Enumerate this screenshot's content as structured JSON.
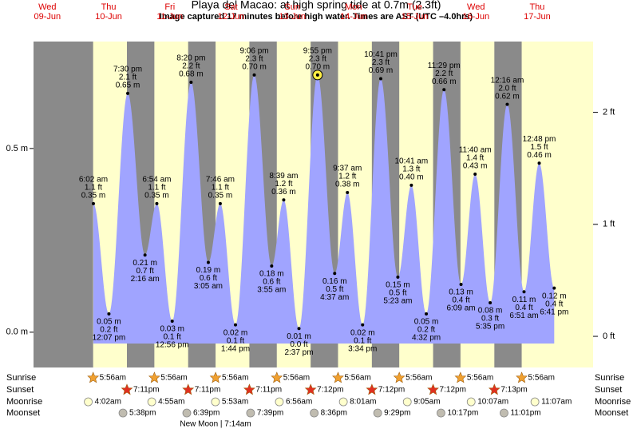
{
  "chart_data": {
    "type": "tide",
    "title": "Playa del Macao: at high  spring tide at 0.7m (2.3ft)",
    "subtitle": "Image captured 17 minutes before high water. Times are AST (UTC –4.0hrs)",
    "ylim": [
      -0.096,
      0.791
    ],
    "yticks": [
      {
        "value": 0,
        "label": "0.0 m"
      },
      {
        "value": 0.5,
        "label": "0.5 m"
      }
    ],
    "y2lim": [
      -0.278,
      2.632
    ],
    "y2ticks": [
      {
        "value": 0,
        "label": "0 ft"
      },
      {
        "value": 1,
        "label": "1 ft"
      },
      {
        "value": 2,
        "label": "2 ft"
      }
    ],
    "colors": {
      "water": "#a0a4ff",
      "day": "#ffffcc",
      "night": "#8a8a8a",
      "date": "#dd0000",
      "sunrise": "#f0a030",
      "sunset": "#e03020",
      "moonrise": "#ffffcc",
      "moonset": "#c0bcb0"
    },
    "rows": {
      "sunrise": "Sunrise",
      "sunset": "Sunset",
      "moonrise": "Moonrise",
      "moonset": "Moonset"
    },
    "moon_phase": "New Moon | 7:14am",
    "days": [
      {
        "weekday": "Wed",
        "date": "09-Jun",
        "tides": []
      },
      {
        "weekday": "Thu",
        "date": "10-Jun",
        "sunrise": "5:56am",
        "sunset": "7:11pm",
        "moonrise": "4:02am",
        "moonset": "5:38pm",
        "tides": [
          {
            "time": "6:02 am",
            "ft": "1.1 ft",
            "m": {
              "value": 0.35,
              "label": "0.35 m"
            }
          },
          {
            "time": "12:07 pm",
            "ft": "0.2 ft",
            "m": {
              "value": 0.05,
              "label": "0.05 m"
            }
          },
          {
            "time": "7:30 pm",
            "ft": "2.1 ft",
            "m": {
              "value": 0.65,
              "label": "0.65 m"
            }
          }
        ]
      },
      {
        "weekday": "Fri",
        "date": "11-Jun",
        "sunrise": "5:56am",
        "sunset": "7:11pm",
        "moonrise": "4:55am",
        "moonset": "6:39pm",
        "tides": [
          {
            "time": "2:16 am",
            "ft": "0.7 ft",
            "m": {
              "value": 0.21,
              "label": "0.21 m"
            }
          },
          {
            "time": "6:54 am",
            "ft": "1.1 ft",
            "m": {
              "value": 0.35,
              "label": "0.35 m"
            }
          },
          {
            "time": "12:56 pm",
            "ft": "0.1 ft",
            "m": {
              "value": 0.03,
              "label": "0.03 m"
            }
          },
          {
            "time": "8:20 pm",
            "ft": "2.2 ft",
            "m": {
              "value": 0.68,
              "label": "0.68 m"
            }
          }
        ]
      },
      {
        "weekday": "Sat",
        "date": "12-Jun",
        "sunrise": "5:56am",
        "sunset": "7:11pm",
        "moonrise": "5:53am",
        "moonset": "7:39pm",
        "tides": [
          {
            "time": "3:05 am",
            "ft": "0.6 ft",
            "m": {
              "value": 0.19,
              "label": "0.19 m"
            }
          },
          {
            "time": "7:46 am",
            "ft": "1.1 ft",
            "m": {
              "value": 0.35,
              "label": "0.35 m"
            }
          },
          {
            "time": "1:44 pm",
            "ft": "0.1 ft",
            "m": {
              "value": 0.02,
              "label": "0.02 m"
            }
          },
          {
            "time": "9:06 pm",
            "ft": "2.3 ft",
            "m": {
              "value": 0.7,
              "label": "0.70 m"
            }
          }
        ]
      },
      {
        "weekday": "Sun",
        "date": "13-Jun",
        "sunrise": "5:56am",
        "sunset": "7:12pm",
        "moonrise": "6:56am",
        "moonset": "8:36pm",
        "tides": [
          {
            "time": "3:55 am",
            "ft": "0.6 ft",
            "m": {
              "value": 0.18,
              "label": "0.18 m"
            }
          },
          {
            "time": "8:39 am",
            "ft": "1.2 ft",
            "m": {
              "value": 0.36,
              "label": "0.36 m"
            }
          },
          {
            "time": "2:37 pm",
            "ft": "0.0 ft",
            "m": {
              "value": 0.01,
              "label": "0.01 m"
            }
          },
          {
            "time": "9:55 pm",
            "ft": "2.3 ft",
            "m": {
              "value": 0.7,
              "label": "0.70 m"
            },
            "current": true
          }
        ]
      },
      {
        "weekday": "Mon",
        "date": "14-Jun",
        "sunrise": "5:56am",
        "sunset": "7:12pm",
        "moonrise": "8:01am",
        "moonset": "9:29pm",
        "tides": [
          {
            "time": "4:37 am",
            "ft": "0.5 ft",
            "m": {
              "value": 0.16,
              "label": "0.16 m"
            }
          },
          {
            "time": "9:37 am",
            "ft": "1.2 ft",
            "m": {
              "value": 0.38,
              "label": "0.38 m"
            }
          },
          {
            "time": "3:34 pm",
            "ft": "0.1 ft",
            "m": {
              "value": 0.02,
              "label": "0.02 m"
            }
          },
          {
            "time": "10:41 pm",
            "ft": "2.3 ft",
            "m": {
              "value": 0.69,
              "label": "0.69 m"
            }
          }
        ]
      },
      {
        "weekday": "Tue",
        "date": "15-Jun",
        "sunrise": "5:56am",
        "sunset": "7:12pm",
        "moonrise": "9:05am",
        "moonset": "10:17pm",
        "tides": [
          {
            "time": "5:23 am",
            "ft": "0.5 ft",
            "m": {
              "value": 0.15,
              "label": "0.15 m"
            }
          },
          {
            "time": "10:41 am",
            "ft": "1.3 ft",
            "m": {
              "value": 0.4,
              "label": "0.40 m"
            }
          },
          {
            "time": "4:32 pm",
            "ft": "0.2 ft",
            "m": {
              "value": 0.05,
              "label": "0.05 m"
            }
          },
          {
            "time": "11:29 pm",
            "ft": "2.2 ft",
            "m": {
              "value": 0.66,
              "label": "0.66 m"
            }
          }
        ]
      },
      {
        "weekday": "Wed",
        "date": "16-Jun",
        "sunrise": "5:56am",
        "sunset": "7:13pm",
        "moonrise": "10:07am",
        "moonset": "11:01pm",
        "tides": [
          {
            "time": "6:09 am",
            "ft": "0.4 ft",
            "m": {
              "value": 0.13,
              "label": "0.13 m"
            }
          },
          {
            "time": "11:40 am",
            "ft": "1.4 ft",
            "m": {
              "value": 0.43,
              "label": "0.43 m"
            }
          },
          {
            "time": "5:35 pm",
            "ft": "0.3 ft",
            "m": {
              "value": 0.08,
              "label": "0.08 m"
            }
          }
        ]
      },
      {
        "weekday": "Thu",
        "date": "17-Jun",
        "sunrise": "5:56am",
        "moonrise": "11:07am",
        "tides": [
          {
            "time": "12:16 am",
            "ft": "2.0 ft",
            "m": {
              "value": 0.62,
              "label": "0.62 m"
            }
          },
          {
            "time": "6:51 am",
            "ft": "0.4 ft",
            "m": {
              "value": 0.11,
              "label": "0.11 m"
            }
          },
          {
            "time": "12:48 pm",
            "ft": "1.5 ft",
            "m": {
              "value": 0.46,
              "label": "0.46 m"
            }
          },
          {
            "time": "6:41 pm",
            "ft": "0.4 ft",
            "m": {
              "value": 0.12,
              "label": "0.12 m"
            }
          }
        ]
      }
    ]
  }
}
